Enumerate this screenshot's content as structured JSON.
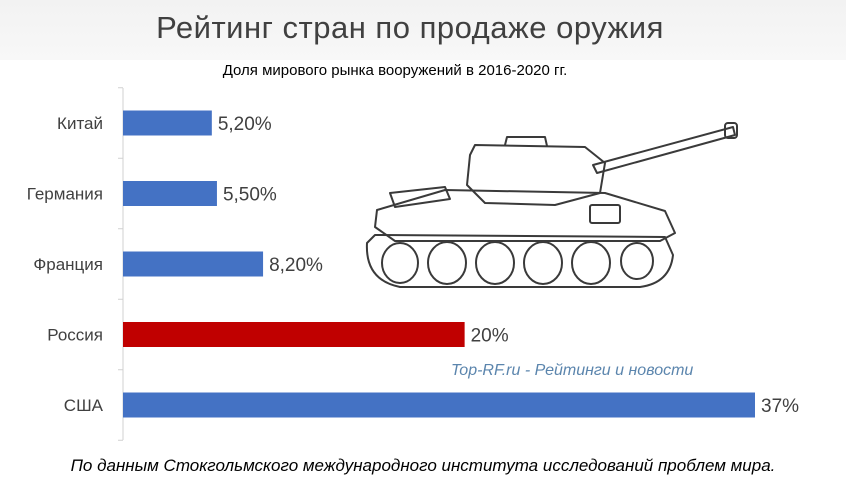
{
  "header": {
    "title": "Рейтинг стран по продаже оружия",
    "subtitle": "Доля мирового рынка вооружений в 2016-2020 гг."
  },
  "watermark": "Top-RF.ru - Рейтинги и новости",
  "footer": "По данным Стокгольмского международного института исследований проблем мира.",
  "colors": {
    "default_bar": "#4472c4",
    "highlight_bar": "#c00000"
  },
  "illustration": "tank-icon",
  "chart_data": {
    "type": "bar",
    "orientation": "horizontal",
    "title": "Рейтинг стран по продаже оружия",
    "subtitle": "Доля мирового рынка вооружений в 2016-2020 гг.",
    "categories": [
      "Китай",
      "Германия",
      "Франция",
      "Россия",
      "США"
    ],
    "values": [
      5.2,
      5.5,
      8.2,
      20,
      37
    ],
    "value_labels": [
      "5,20%",
      "5,50%",
      "8,20%",
      "20%",
      "37%"
    ],
    "highlight": "Россия",
    "unit": "%",
    "xlim": [
      0,
      37
    ],
    "grid": false,
    "legend": "none"
  }
}
